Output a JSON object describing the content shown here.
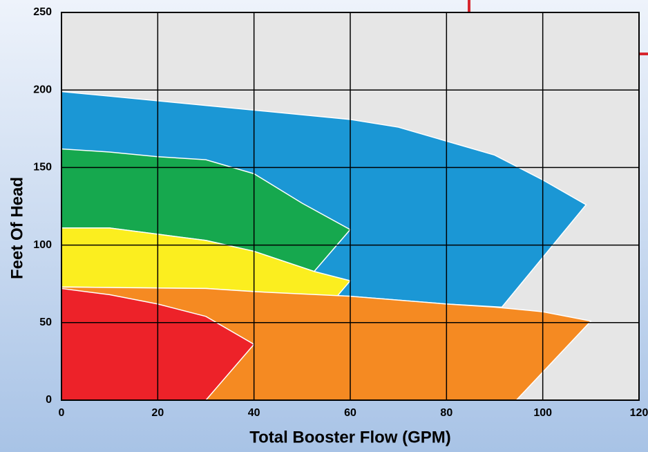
{
  "chart_data": {
    "type": "polygon",
    "xlabel": "Total Booster Flow (GPM)",
    "ylabel": "Feet Of Head",
    "xlim": [
      0,
      120
    ],
    "xticks": [
      0,
      20,
      40,
      60,
      80,
      100,
      120
    ],
    "ylim": [
      0,
      250
    ],
    "yticks": [
      0,
      50,
      100,
      150,
      200,
      250
    ],
    "grid": true,
    "series": [
      {
        "color": "#1b97d5",
        "x": [
          0,
          10,
          20,
          30,
          40,
          60,
          70,
          80,
          90,
          100,
          109,
          91.5,
          80,
          60,
          40,
          30,
          0
        ],
        "y": [
          199,
          196,
          193,
          190,
          187,
          181,
          176,
          167,
          158,
          142,
          126,
          60,
          62,
          67,
          70,
          72,
          73
        ]
      },
      {
        "color": "#16a84e",
        "x": [
          0,
          10,
          20,
          30,
          40,
          50,
          60,
          52.5,
          40,
          30,
          20,
          10,
          0
        ],
        "y": [
          162,
          160,
          157,
          155,
          146,
          127,
          110,
          83,
          96,
          103,
          107,
          111,
          111
        ]
      },
      {
        "color": "#fbee1f",
        "x": [
          0,
          10,
          20,
          30,
          40,
          52.5,
          60,
          57,
          40,
          30,
          0
        ],
        "y": [
          111,
          111,
          107,
          103,
          96,
          83,
          77,
          66,
          70,
          72,
          73
        ]
      },
      {
        "color": "#f58a22",
        "x": [
          0,
          30,
          40,
          60,
          80,
          90,
          100,
          110,
          94.5,
          0
        ],
        "y": [
          73,
          72,
          70,
          67,
          62,
          60,
          57,
          51,
          0,
          0
        ]
      },
      {
        "color": "#ed2229",
        "x": [
          0,
          10,
          20,
          30,
          40,
          30,
          0
        ],
        "y": [
          72,
          68,
          62,
          54,
          36,
          0,
          0
        ]
      }
    ]
  }
}
